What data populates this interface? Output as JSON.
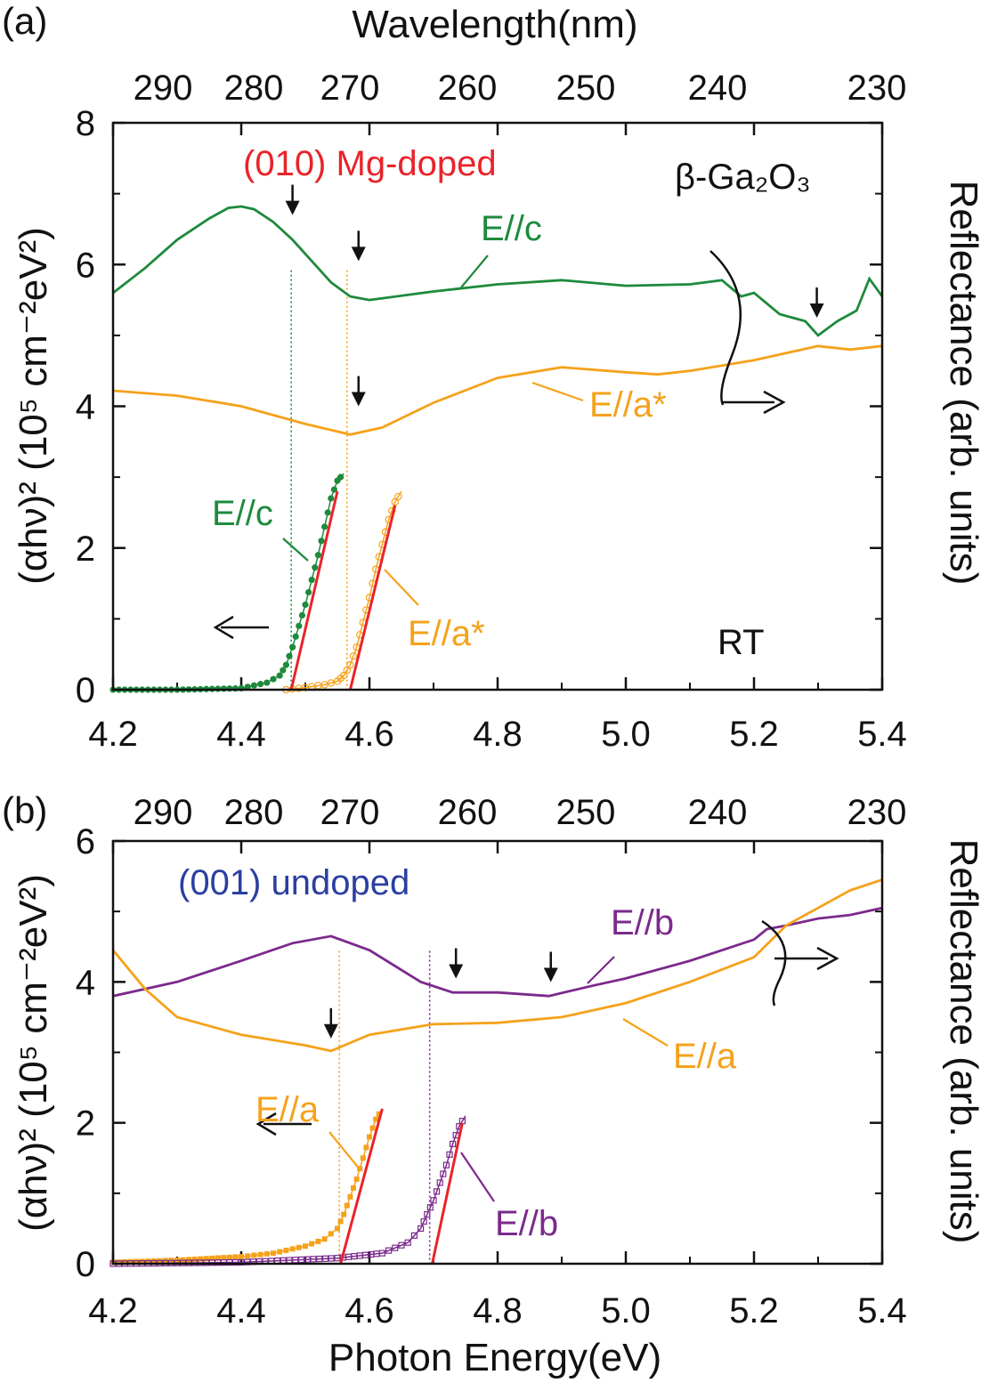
{
  "colors": {
    "green": "#1e8a3c",
    "orange": "#f5a21b",
    "purple": "#7b2a8c",
    "red": "#e8242a",
    "blue": "#2b3fa0",
    "black": "#111111"
  },
  "chart_data": [
    {
      "panel": "(a)",
      "type": "line",
      "xlabel": "",
      "top_xlabel": "Wavelength(nm)",
      "ylabel_left": "(αhν)² (10⁵ cm⁻²eV²)",
      "ylabel_right": "Reflectance (arb. units)",
      "xlim": [
        4.2,
        5.4
      ],
      "ylim": [
        0,
        8
      ],
      "xticks": [
        "4.2",
        "4.4",
        "4.6",
        "4.8",
        "5.0",
        "5.2",
        "5.4"
      ],
      "yticks": [
        "0",
        "2",
        "4",
        "6",
        "8"
      ],
      "top_ticks": [
        "290",
        "280",
        "270",
        "260",
        "250",
        "240",
        "230"
      ],
      "sample_label": "(010) Mg-doped",
      "material_label": "β-Ga₂O₃",
      "temperature_label": "RT",
      "series": [
        {
          "name": "E//c",
          "kind": "reflectance",
          "color": "green",
          "x": [
            4.2,
            4.25,
            4.3,
            4.35,
            4.38,
            4.4,
            4.42,
            4.45,
            4.48,
            4.51,
            4.54,
            4.57,
            4.6,
            4.7,
            4.8,
            4.9,
            5.0,
            5.1,
            5.15,
            5.18,
            5.2,
            5.24,
            5.28,
            5.3,
            5.33,
            5.36,
            5.38,
            5.4
          ],
          "y": [
            5.6,
            5.95,
            6.35,
            6.65,
            6.8,
            6.82,
            6.78,
            6.6,
            6.35,
            6.05,
            5.75,
            5.55,
            5.5,
            5.62,
            5.72,
            5.78,
            5.7,
            5.72,
            5.78,
            5.55,
            5.6,
            5.3,
            5.2,
            5.0,
            5.2,
            5.35,
            5.8,
            5.55
          ]
        },
        {
          "name": "E//a*",
          "kind": "reflectance",
          "color": "orange",
          "x": [
            4.2,
            4.3,
            4.4,
            4.5,
            4.57,
            4.62,
            4.7,
            4.8,
            4.9,
            5.0,
            5.05,
            5.1,
            5.2,
            5.3,
            5.35,
            5.4
          ],
          "y": [
            4.22,
            4.15,
            4.0,
            3.75,
            3.6,
            3.7,
            4.05,
            4.4,
            4.55,
            4.48,
            4.45,
            4.5,
            4.65,
            4.85,
            4.8,
            4.85
          ]
        },
        {
          "name": "E//c",
          "kind": "absorption",
          "color": "green",
          "x": [
            4.2,
            4.3,
            4.4,
            4.44,
            4.46,
            4.47,
            4.48,
            4.49,
            4.5,
            4.51,
            4.52,
            4.53,
            4.54,
            4.55,
            4.56
          ],
          "y": [
            0,
            0,
            0.02,
            0.1,
            0.2,
            0.35,
            0.6,
            0.9,
            1.2,
            1.55,
            1.9,
            2.3,
            2.7,
            2.95,
            3.05
          ]
        },
        {
          "name": "E//a*",
          "kind": "absorption",
          "color": "orange",
          "x": [
            4.47,
            4.5,
            4.53,
            4.55,
            4.56,
            4.57,
            4.58,
            4.59,
            4.6,
            4.61,
            4.62,
            4.63,
            4.64,
            4.65
          ],
          "y": [
            0,
            0.03,
            0.07,
            0.12,
            0.2,
            0.35,
            0.6,
            0.95,
            1.3,
            1.7,
            2.05,
            2.4,
            2.65,
            2.8
          ]
        }
      ],
      "fits": [
        {
          "color": "red",
          "x": [
            4.478,
            4.55
          ],
          "y": [
            0,
            2.8
          ]
        },
        {
          "color": "red",
          "x": [
            4.57,
            4.64
          ],
          "y": [
            0,
            2.6
          ]
        }
      ],
      "guides": [
        {
          "x": 4.478,
          "color": "green"
        },
        {
          "x": 4.565,
          "color": "orange"
        }
      ],
      "arrows_down": [
        [
          4.48,
          6.85
        ],
        [
          4.583,
          6.2
        ],
        [
          4.583,
          4.15
        ],
        [
          5.298,
          5.4
        ]
      ]
    },
    {
      "panel": "(b)",
      "type": "line",
      "xlabel": "Photon Energy(eV)",
      "ylabel_left": "(αhν)² (10⁵ cm⁻²eV²)",
      "ylabel_right": "Reflectance (arb. units)",
      "xlim": [
        4.2,
        5.4
      ],
      "ylim": [
        0,
        6
      ],
      "xticks": [
        "4.2",
        "4.4",
        "4.6",
        "4.8",
        "5.0",
        "5.2",
        "5.4"
      ],
      "yticks": [
        "0",
        "2",
        "4",
        "6"
      ],
      "top_ticks": [
        "290",
        "280",
        "270",
        "260",
        "250",
        "240",
        "230"
      ],
      "sample_label": "(001) undoped",
      "series": [
        {
          "name": "E//b",
          "kind": "reflectance",
          "color": "purple",
          "x": [
            4.2,
            4.3,
            4.4,
            4.48,
            4.54,
            4.6,
            4.68,
            4.73,
            4.8,
            4.88,
            4.95,
            5.0,
            5.1,
            5.2,
            5.22,
            5.25,
            5.3,
            5.35,
            5.4
          ],
          "y": [
            3.8,
            4.0,
            4.3,
            4.55,
            4.65,
            4.45,
            4.0,
            3.85,
            3.85,
            3.8,
            3.95,
            4.05,
            4.3,
            4.6,
            4.75,
            4.8,
            4.9,
            4.95,
            5.05
          ]
        },
        {
          "name": "E//a",
          "kind": "reflectance",
          "color": "orange",
          "x": [
            4.2,
            4.25,
            4.3,
            4.4,
            4.5,
            4.54,
            4.6,
            4.7,
            4.8,
            4.9,
            5.0,
            5.1,
            5.2,
            5.25,
            5.3,
            5.35,
            5.4
          ],
          "y": [
            4.45,
            3.9,
            3.5,
            3.25,
            3.1,
            3.02,
            3.25,
            3.4,
            3.42,
            3.5,
            3.7,
            4.0,
            4.35,
            4.8,
            5.05,
            5.3,
            5.45
          ]
        },
        {
          "name": "E//a",
          "kind": "absorption",
          "color": "orange",
          "x": [
            4.2,
            4.3,
            4.4,
            4.45,
            4.5,
            4.53,
            4.55,
            4.56,
            4.57,
            4.58,
            4.59,
            4.6,
            4.61,
            4.62
          ],
          "y": [
            0.02,
            0.05,
            0.1,
            0.15,
            0.25,
            0.35,
            0.5,
            0.7,
            0.95,
            1.2,
            1.5,
            1.8,
            2.05,
            2.2
          ]
        },
        {
          "name": "E//b",
          "kind": "absorption",
          "color": "purple",
          "x": [
            4.2,
            4.4,
            4.55,
            4.62,
            4.66,
            4.68,
            4.69,
            4.7,
            4.71,
            4.72,
            4.73,
            4.74,
            4.75
          ],
          "y": [
            0,
            0.02,
            0.08,
            0.15,
            0.3,
            0.5,
            0.7,
            0.9,
            1.15,
            1.4,
            1.7,
            1.95,
            2.1
          ]
        }
      ],
      "fits": [
        {
          "color": "red",
          "x": [
            4.555,
            4.62
          ],
          "y": [
            0,
            2.2
          ]
        },
        {
          "color": "red",
          "x": [
            4.698,
            4.745
          ],
          "y": [
            0,
            2.0
          ]
        }
      ],
      "guides": [
        {
          "x": 4.553,
          "color": "orange"
        },
        {
          "x": 4.694,
          "color": "purple"
        }
      ],
      "arrows_down": [
        [
          4.54,
          3.35
        ],
        [
          4.735,
          4.2
        ],
        [
          4.883,
          4.15
        ]
      ]
    }
  ]
}
